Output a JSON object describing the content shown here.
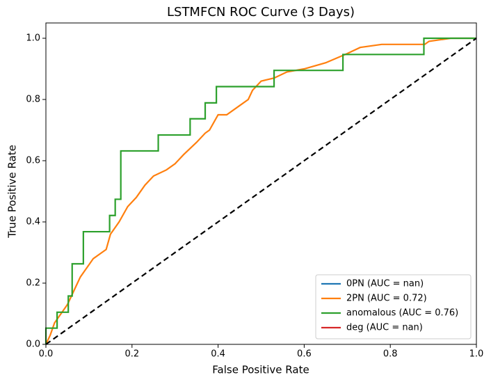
{
  "chart_data": {
    "type": "line",
    "title": "LSTMFCN ROC Curve (3 Days)",
    "x_label": "False Positive Rate",
    "y_label": "True Positive Rate",
    "xlim": [
      0,
      1
    ],
    "ylim": [
      0,
      1.05
    ],
    "xticks": [
      {
        "value": 0,
        "label": "0.0"
      },
      0.2,
      0.4,
      0.6,
      0.8,
      {
        "value": 1,
        "label": "1.0"
      }
    ],
    "yticks": [
      {
        "value": 0,
        "label": "0.0"
      },
      0.2,
      0.4,
      0.6,
      0.8,
      {
        "value": 1,
        "label": "1.0"
      }
    ],
    "legend": "lower right",
    "series": [
      {
        "name": "0PN (AUC = nan)",
        "color": "#1f77b4",
        "x": [],
        "values": []
      },
      {
        "name": "2PN (AUC = 0.72)",
        "color": "#ff7f0e",
        "x": [
          0,
          0.01,
          0.02,
          0.03,
          0.04,
          0.05,
          0.06,
          0.07,
          0.08,
          0.09,
          0.1,
          0.11,
          0.13,
          0.14,
          0.15,
          0.17,
          0.19,
          0.21,
          0.23,
          0.25,
          0.28,
          0.3,
          0.32,
          0.35,
          0.37,
          0.38,
          0.4,
          0.42,
          0.45,
          0.47,
          0.48,
          0.5,
          0.53,
          0.56,
          0.6,
          0.65,
          0.7,
          0.73,
          0.78,
          0.88,
          0.89,
          0.94,
          1
        ],
        "values": [
          0,
          0.03,
          0.07,
          0.09,
          0.11,
          0.13,
          0.16,
          0.19,
          0.22,
          0.24,
          0.26,
          0.28,
          0.3,
          0.31,
          0.36,
          0.4,
          0.45,
          0.48,
          0.52,
          0.55,
          0.57,
          0.59,
          0.62,
          0.66,
          0.69,
          0.7,
          0.75,
          0.75,
          0.78,
          0.8,
          0.83,
          0.86,
          0.87,
          0.89,
          0.9,
          0.92,
          0.95,
          0.97,
          0.98,
          0.98,
          0.99,
          1,
          1
        ]
      },
      {
        "name": "anomalous (AUC = 0.76)",
        "color": "#2ca02c",
        "x": [
          0,
          0,
          0.026,
          0.026,
          0.052,
          0.052,
          0.061,
          0.061,
          0.087,
          0.087,
          0.148,
          0.148,
          0.161,
          0.161,
          0.174,
          0.174,
          0.261,
          0.261,
          0.335,
          0.335,
          0.37,
          0.37,
          0.396,
          0.396,
          0.53,
          0.53,
          0.69,
          0.69,
          0.878,
          0.878,
          1
        ],
        "values": [
          0,
          0.053,
          0.053,
          0.105,
          0.105,
          0.158,
          0.158,
          0.263,
          0.263,
          0.368,
          0.368,
          0.421,
          0.421,
          0.474,
          0.474,
          0.632,
          0.632,
          0.684,
          0.684,
          0.737,
          0.737,
          0.789,
          0.789,
          0.842,
          0.842,
          0.895,
          0.895,
          0.947,
          0.947,
          1,
          1
        ]
      },
      {
        "name": "deg (AUC = nan)",
        "color": "#d62728",
        "x": [],
        "values": []
      }
    ],
    "reference_line": {
      "x": [
        0,
        1
      ],
      "values": [
        0,
        1
      ],
      "color": "#000000",
      "dashed": true
    }
  }
}
